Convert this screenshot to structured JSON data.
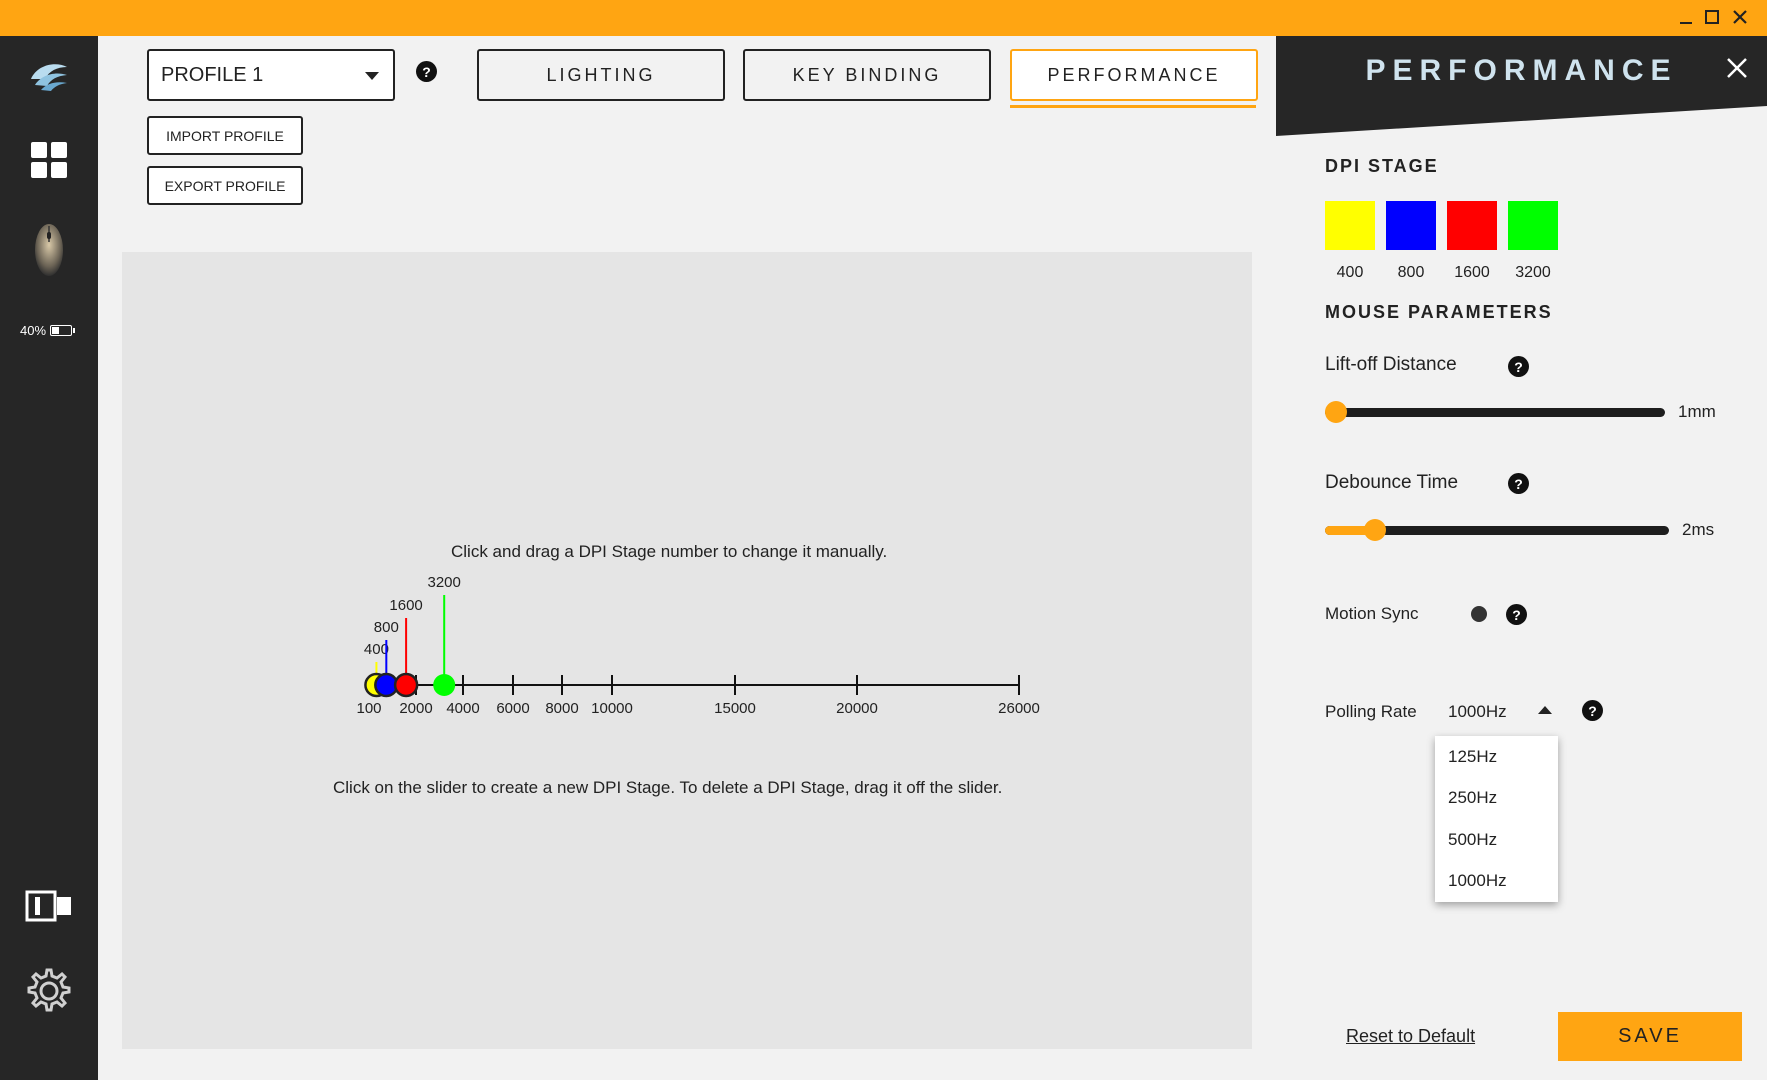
{
  "window": {
    "accent_color": "#ffa512",
    "controls": {
      "minimize": "minimize-icon",
      "maximize": "maximize-icon",
      "close": "close-icon"
    }
  },
  "sidebar": {
    "items": [
      {
        "icon": "logo-icon"
      },
      {
        "icon": "grid-icon"
      },
      {
        "icon": "mouse-icon",
        "battery": "40%"
      },
      {
        "icon": "panel-toggle-icon"
      },
      {
        "icon": "gear-icon"
      }
    ]
  },
  "header": {
    "profile_value": "PROFILE 1",
    "help": "?",
    "tabs": [
      {
        "label": "LIGHTING"
      },
      {
        "label": "KEY BINDING"
      },
      {
        "label": "PERFORMANCE",
        "active": true
      }
    ],
    "import_label": "IMPORT PROFILE",
    "export_label": "EXPORT PROFILE"
  },
  "dpi_slider": {
    "hint_top": "Click and drag a DPI Stage number to change it manually.",
    "hint_bottom": "Click on the slider to create a new DPI Stage. To delete a DPI Stage, drag it off the slider.",
    "ticks": [
      "100",
      "2000",
      "4000",
      "6000",
      "8000",
      "10000",
      "15000",
      "20000",
      "26000"
    ],
    "stages": [
      {
        "value": 400,
        "label": "400",
        "color": "#ffff00"
      },
      {
        "value": 800,
        "label": "800",
        "color": "#0000ff"
      },
      {
        "value": 1600,
        "label": "1600",
        "color": "#ff0000"
      },
      {
        "value": 3200,
        "label": "3200",
        "color": "#00ff00"
      }
    ]
  },
  "panel": {
    "title": "PERFORMANCE",
    "close": "close-icon",
    "dpi_stage_title": "DPI STAGE",
    "dpi_stages": [
      {
        "label": "400",
        "color": "#ffff00"
      },
      {
        "label": "800",
        "color": "#0000ff"
      },
      {
        "label": "1600",
        "color": "#ff0000"
      },
      {
        "label": "3200",
        "color": "#00ff00"
      }
    ],
    "mouse_params_title": "MOUSE PARAMETERS",
    "liftoff": {
      "label": "Lift-off Distance",
      "value": "1mm",
      "fraction": 0.0
    },
    "debounce": {
      "label": "Debounce Time",
      "value": "2ms",
      "fraction": 0.14
    },
    "motion_sync": {
      "label": "Motion Sync"
    },
    "polling": {
      "label": "Polling Rate",
      "value": "1000Hz",
      "options": [
        "125Hz",
        "250Hz",
        "500Hz",
        "1000Hz"
      ]
    },
    "reset_label": "Reset to Default",
    "save_label": "SAVE",
    "help": "?"
  }
}
